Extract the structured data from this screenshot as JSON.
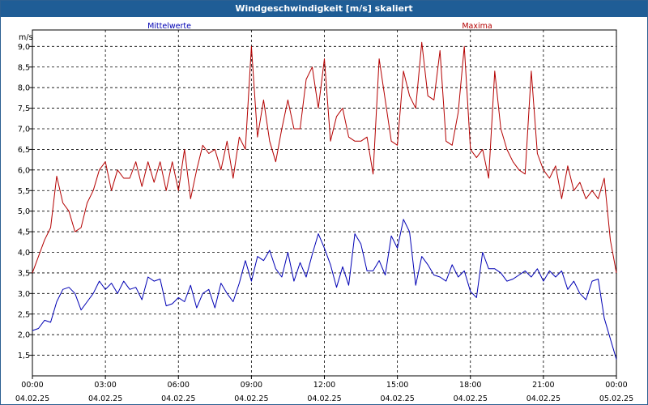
{
  "window": {
    "title": "Windgeschwindigkeit [m/s] skaliert"
  },
  "colors": {
    "titlebar": "#1f5d96",
    "mean": "#0000b4",
    "max": "#b40000",
    "grid": "#000000"
  },
  "chart_data": {
    "type": "line",
    "title": "Windgeschwindigkeit [m/s] skaliert",
    "ylabel": "m/s",
    "ylim": [
      1.0,
      9.4
    ],
    "xlim": [
      0,
      24
    ],
    "grid": true,
    "legend_placement": "top",
    "y_ticks": [
      "1,5",
      "2,0",
      "2,5",
      "3,0",
      "3,5",
      "4,0",
      "4,5",
      "5,0",
      "5,5",
      "6,0",
      "6,5",
      "7,0",
      "7,5",
      "8,0",
      "8,5",
      "9,0"
    ],
    "x_ticks": [
      {
        "time": "00:00",
        "date": "04.02.25"
      },
      {
        "time": "03:00",
        "date": "04.02.25"
      },
      {
        "time": "06:00",
        "date": "04.02.25"
      },
      {
        "time": "09:00",
        "date": "04.02.25"
      },
      {
        "time": "12:00",
        "date": "04.02.25"
      },
      {
        "time": "15:00",
        "date": "04.02.25"
      },
      {
        "time": "18:00",
        "date": "04.02.25"
      },
      {
        "time": "21:00",
        "date": "04.02.25"
      },
      {
        "time": "00:00",
        "date": "05.02.25"
      }
    ],
    "series": [
      {
        "name": "Mittelwerte",
        "color": "#0000b4",
        "points": [
          [
            0.0,
            2.1
          ],
          [
            0.25,
            2.15
          ],
          [
            0.5,
            2.35
          ],
          [
            0.75,
            2.3
          ],
          [
            1.0,
            2.8
          ],
          [
            1.25,
            3.1
          ],
          [
            1.5,
            3.15
          ],
          [
            1.75,
            3.0
          ],
          [
            2.0,
            2.6
          ],
          [
            2.25,
            2.8
          ],
          [
            2.5,
            3.0
          ],
          [
            2.75,
            3.3
          ],
          [
            3.0,
            3.1
          ],
          [
            3.25,
            3.25
          ],
          [
            3.5,
            3.0
          ],
          [
            3.75,
            3.3
          ],
          [
            4.0,
            3.1
          ],
          [
            4.25,
            3.15
          ],
          [
            4.5,
            2.85
          ],
          [
            4.75,
            3.4
          ],
          [
            5.0,
            3.3
          ],
          [
            5.25,
            3.35
          ],
          [
            5.5,
            2.7
          ],
          [
            5.75,
            2.75
          ],
          [
            6.0,
            2.9
          ],
          [
            6.25,
            2.8
          ],
          [
            6.5,
            3.2
          ],
          [
            6.75,
            2.65
          ],
          [
            7.0,
            3.0
          ],
          [
            7.25,
            3.1
          ],
          [
            7.5,
            2.65
          ],
          [
            7.75,
            3.25
          ],
          [
            8.0,
            3.0
          ],
          [
            8.25,
            2.8
          ],
          [
            8.5,
            3.25
          ],
          [
            8.75,
            3.8
          ],
          [
            9.0,
            3.3
          ],
          [
            9.25,
            3.9
          ],
          [
            9.5,
            3.8
          ],
          [
            9.75,
            4.05
          ],
          [
            10.0,
            3.6
          ],
          [
            10.25,
            3.4
          ],
          [
            10.5,
            4.0
          ],
          [
            10.75,
            3.3
          ],
          [
            11.0,
            3.75
          ],
          [
            11.25,
            3.4
          ],
          [
            11.5,
            3.95
          ],
          [
            11.75,
            4.45
          ],
          [
            12.0,
            4.1
          ],
          [
            12.25,
            3.7
          ],
          [
            12.5,
            3.15
          ],
          [
            12.75,
            3.65
          ],
          [
            13.0,
            3.2
          ],
          [
            13.25,
            4.45
          ],
          [
            13.5,
            4.2
          ],
          [
            13.75,
            3.55
          ],
          [
            14.0,
            3.55
          ],
          [
            14.25,
            3.8
          ],
          [
            14.5,
            3.45
          ],
          [
            14.75,
            4.4
          ],
          [
            15.0,
            4.1
          ],
          [
            15.25,
            4.8
          ],
          [
            15.5,
            4.5
          ],
          [
            15.75,
            3.2
          ],
          [
            16.0,
            3.9
          ],
          [
            16.25,
            3.7
          ],
          [
            16.5,
            3.45
          ],
          [
            16.75,
            3.4
          ],
          [
            17.0,
            3.3
          ],
          [
            17.25,
            3.7
          ],
          [
            17.5,
            3.4
          ],
          [
            17.75,
            3.55
          ],
          [
            18.0,
            3.05
          ],
          [
            18.25,
            2.9
          ],
          [
            18.5,
            4.0
          ],
          [
            18.75,
            3.6
          ],
          [
            19.0,
            3.6
          ],
          [
            19.25,
            3.5
          ],
          [
            19.5,
            3.3
          ],
          [
            19.75,
            3.35
          ],
          [
            20.0,
            3.45
          ],
          [
            20.25,
            3.55
          ],
          [
            20.5,
            3.4
          ],
          [
            20.75,
            3.6
          ],
          [
            21.0,
            3.3
          ],
          [
            21.25,
            3.55
          ],
          [
            21.5,
            3.4
          ],
          [
            21.75,
            3.55
          ],
          [
            22.0,
            3.1
          ],
          [
            22.25,
            3.3
          ],
          [
            22.5,
            3.0
          ],
          [
            22.75,
            2.85
          ],
          [
            23.0,
            3.3
          ],
          [
            23.25,
            3.35
          ],
          [
            23.5,
            2.4
          ],
          [
            23.75,
            1.9
          ],
          [
            24.0,
            1.4
          ]
        ]
      },
      {
        "name": "Maxima",
        "color": "#b40000",
        "points": [
          [
            0.0,
            3.5
          ],
          [
            0.25,
            3.9
          ],
          [
            0.5,
            4.3
          ],
          [
            0.75,
            4.6
          ],
          [
            1.0,
            5.85
          ],
          [
            1.25,
            5.2
          ],
          [
            1.5,
            5.0
          ],
          [
            1.75,
            4.5
          ],
          [
            2.0,
            4.6
          ],
          [
            2.25,
            5.2
          ],
          [
            2.5,
            5.5
          ],
          [
            2.75,
            6.0
          ],
          [
            3.0,
            6.2
          ],
          [
            3.25,
            5.5
          ],
          [
            3.5,
            6.0
          ],
          [
            3.75,
            5.8
          ],
          [
            4.0,
            5.8
          ],
          [
            4.25,
            6.2
          ],
          [
            4.5,
            5.6
          ],
          [
            4.75,
            6.2
          ],
          [
            5.0,
            5.7
          ],
          [
            5.25,
            6.2
          ],
          [
            5.5,
            5.5
          ],
          [
            5.75,
            6.2
          ],
          [
            6.0,
            5.5
          ],
          [
            6.25,
            6.5
          ],
          [
            6.5,
            5.3
          ],
          [
            6.75,
            6.0
          ],
          [
            7.0,
            6.6
          ],
          [
            7.25,
            6.4
          ],
          [
            7.5,
            6.5
          ],
          [
            7.75,
            6.0
          ],
          [
            8.0,
            6.7
          ],
          [
            8.25,
            5.8
          ],
          [
            8.5,
            6.8
          ],
          [
            8.75,
            6.5
          ],
          [
            9.0,
            9.0
          ],
          [
            9.25,
            6.8
          ],
          [
            9.5,
            7.7
          ],
          [
            9.75,
            6.7
          ],
          [
            10.0,
            6.2
          ],
          [
            10.25,
            7.0
          ],
          [
            10.5,
            7.7
          ],
          [
            10.75,
            7.0
          ],
          [
            11.0,
            7.0
          ],
          [
            11.25,
            8.2
          ],
          [
            11.5,
            8.5
          ],
          [
            11.75,
            7.5
          ],
          [
            12.0,
            8.7
          ],
          [
            12.25,
            6.7
          ],
          [
            12.5,
            7.3
          ],
          [
            12.75,
            7.5
          ],
          [
            13.0,
            6.8
          ],
          [
            13.25,
            6.7
          ],
          [
            13.5,
            6.7
          ],
          [
            13.75,
            6.8
          ],
          [
            14.0,
            5.9
          ],
          [
            14.25,
            8.7
          ],
          [
            14.5,
            7.7
          ],
          [
            14.75,
            6.7
          ],
          [
            15.0,
            6.6
          ],
          [
            15.25,
            8.4
          ],
          [
            15.5,
            7.8
          ],
          [
            15.75,
            7.5
          ],
          [
            16.0,
            9.1
          ],
          [
            16.25,
            7.8
          ],
          [
            16.5,
            7.7
          ],
          [
            16.75,
            8.9
          ],
          [
            17.0,
            6.7
          ],
          [
            17.25,
            6.6
          ],
          [
            17.5,
            7.4
          ],
          [
            17.75,
            9.0
          ],
          [
            18.0,
            6.5
          ],
          [
            18.25,
            6.3
          ],
          [
            18.5,
            6.5
          ],
          [
            18.75,
            5.8
          ],
          [
            19.0,
            8.4
          ],
          [
            19.25,
            7.0
          ],
          [
            19.5,
            6.5
          ],
          [
            19.75,
            6.2
          ],
          [
            20.0,
            6.0
          ],
          [
            20.25,
            5.9
          ],
          [
            20.5,
            8.4
          ],
          [
            20.75,
            6.4
          ],
          [
            21.0,
            6.0
          ],
          [
            21.25,
            5.8
          ],
          [
            21.5,
            6.1
          ],
          [
            21.75,
            5.3
          ],
          [
            22.0,
            6.1
          ],
          [
            22.25,
            5.5
          ],
          [
            22.5,
            5.7
          ],
          [
            22.75,
            5.3
          ],
          [
            23.0,
            5.5
          ],
          [
            23.25,
            5.3
          ],
          [
            23.5,
            5.8
          ],
          [
            23.75,
            4.3
          ],
          [
            24.0,
            3.5
          ]
        ]
      }
    ]
  }
}
